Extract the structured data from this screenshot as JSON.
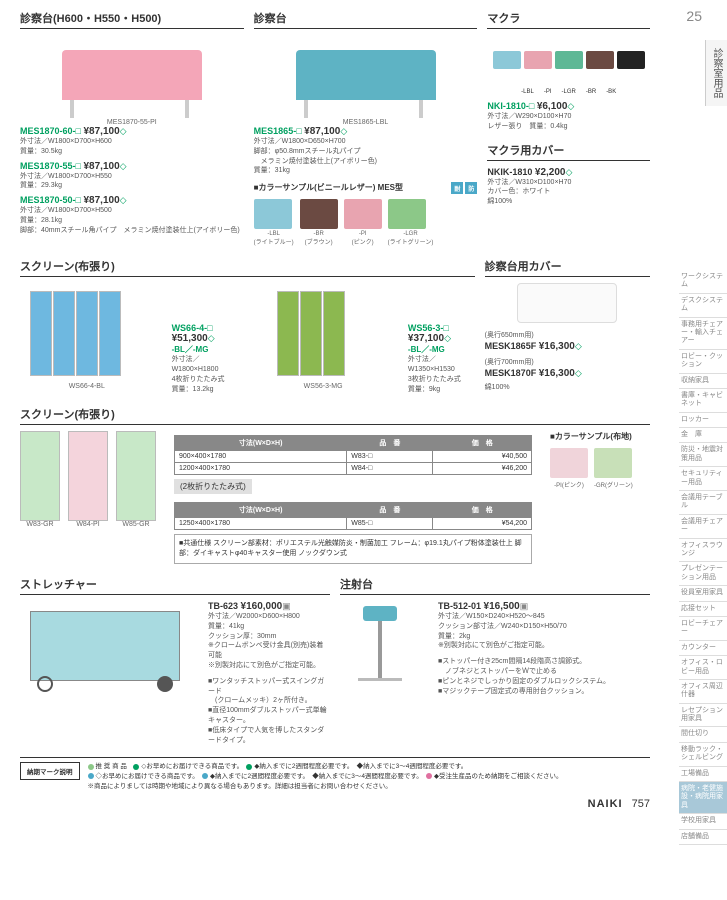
{
  "page": {
    "top_number": "25",
    "brand": "NAIKI",
    "bottom_number": "757"
  },
  "side_tab": "診察室用品",
  "side_index": [
    "ワークシステム",
    "デスクシステム",
    "事務用チェアー・輸入チェアー",
    "ロビー・クッション",
    "収納家具",
    "書庫・キャビネット",
    "ロッカー",
    "金　庫",
    "防災・地震対策用品",
    "セキュリティー用品",
    "会議用テーブル",
    "会議用チェアー",
    "オフィスラウンジ",
    "プレゼンテーション用品",
    "役員室用家具",
    "応接セット",
    "ロビーチェアー",
    "カウンター",
    "オフィス・ロビー用品",
    "オフィス周辺什器",
    "レセプション用家具",
    "間仕切り",
    "移動ラック・シェルビング",
    "工場備品",
    "病院・老健施設・病院用家具",
    "学校用家具",
    "店舗備品"
  ],
  "side_index_active": 24,
  "sections": {
    "exam_bed_1": {
      "title": "診察台(H600・H550・H500)",
      "caption": "MES1870-55-PI",
      "items": [
        {
          "code": "MES1870-60-□",
          "price": "¥87,100",
          "spec": "外寸法／W1800×D700×H600\n質量：30.5kg"
        },
        {
          "code": "MES1870-55-□",
          "price": "¥87,100",
          "spec": "外寸法／W1800×D700×H550\n質量：29.3kg"
        },
        {
          "code": "MES1870-50-□",
          "price": "¥87,100",
          "spec": "外寸法／W1800×D700×H500\n質量：28.1kg\n脚部：40mmスチール角パイプ　メラミン焼付塗装仕上(アイボリー色)"
        }
      ]
    },
    "exam_bed_2": {
      "title": "診察台",
      "caption": "MES1865-LBL",
      "item": {
        "code": "MES1865-□",
        "price": "¥87,100",
        "spec": "外寸法／W1800×D650×H700\n脚部：φ50.8mmスチール丸パイプ\n　メラミン焼付塗装仕上(アイボリー色)\n質量：31kg"
      },
      "swatch_title": "■カラーサンプル(ビニールレザー) MES型",
      "swatches": [
        {
          "c": "#8cc8d8",
          "code": "-LBL",
          "name": "(ライトブルー)"
        },
        {
          "c": "#6b4a42",
          "code": "-BR",
          "name": "(ブラウン)"
        },
        {
          "c": "#e8a4b0",
          "code": "-PI",
          "name": "(ピンク)"
        },
        {
          "c": "#8cc888",
          "code": "-LGR",
          "name": "(ライトグリーン)"
        }
      ]
    },
    "pillow": {
      "title": "マクラ",
      "colors": [
        "#8cc8d8",
        "#e8a4b0",
        "#5eb896",
        "#6b4a42",
        "#222"
      ],
      "color_labels": [
        "-LBL",
        "-PI",
        "-LGR",
        "-BR",
        "-BK"
      ],
      "item": {
        "code": "NKI-1810-□",
        "price": "¥6,100",
        "spec": "外寸法／W290×D100×H70\nレザー張り　質量：0.4kg"
      }
    },
    "pillow_cover": {
      "title": "マクラ用カバー",
      "item": {
        "code": "NKIK-1810",
        "price": "¥2,200",
        "spec": "外寸法／W310×D100×H70\nカバー色：ホワイト\n綿100%"
      }
    },
    "screen1": {
      "title": "スクリーン(布張り)",
      "left": {
        "caption": "WS66-4-BL",
        "code": "WS66-4-□",
        "variants": "-BL／-MG",
        "price": "¥51,300",
        "spec": "外寸法／W1800×H1800\n4枚折りたたみ式\n質量：13.2kg",
        "color": "#6eb8e0"
      },
      "right": {
        "caption": "WS56-3-MG",
        "code": "WS56-3-□",
        "variants": "-BL／-MG",
        "price": "¥37,100",
        "spec": "外寸法／W1350×H1530\n3枚折りたたみ式\n質量：9kg",
        "color": "#8cb850"
      }
    },
    "bed_cover": {
      "title": "診察台用カバー",
      "items": [
        {
          "label": "(奥行650mm用)",
          "code": "MESK1865F",
          "price": "¥16,300"
        },
        {
          "label": "(奥行700mm用)",
          "code": "MESK1870F",
          "price": "¥16,300"
        }
      ],
      "spec": "綿100%"
    },
    "screen2": {
      "title": "スクリーン(布張り)",
      "captions": [
        "W83-GR",
        "W84-PI",
        "W85-GR"
      ],
      "colors": [
        "#c8e8c8",
        "#f4d4dc",
        "#c8e8c8"
      ],
      "table1_title": "寸法(W×D×H)",
      "table_headers": [
        "寸法(W×D×H)",
        "品　番",
        "価　格"
      ],
      "table1": [
        {
          "dim": "900×400×1780",
          "code": "W83-□",
          "price": "¥40,500"
        },
        {
          "dim": "1200×400×1780",
          "code": "W84-□",
          "price": "¥46,200"
        }
      ],
      "table2_label": "(2枚折りたたみ式)",
      "table2": [
        {
          "dim": "1250×400×1780",
          "code": "W85-□",
          "price": "¥54,200"
        }
      ],
      "note": "■共通仕様\nスクリーン部素材：ポリエステル光触媒防炎・制菌加工\nフレーム：φ19.1丸パイプ粉体塗装仕上\n脚部：ダイキャストφ40キャスター使用\nノックダウン式",
      "swatch_title": "■カラーサンプル(布地)",
      "swatches": [
        {
          "c": "#f0d4da",
          "code": "-PI(ピンク)"
        },
        {
          "c": "#c8e0b8",
          "code": "-GR(グリーン)"
        }
      ]
    },
    "stretcher": {
      "title": "ストレッチャー",
      "code": "TB-623",
      "price": "¥160,000",
      "spec": "外寸法／W2000×D600×H800\n質量：41kg\nクッション厚：30mm\n※クロームボンベ受け金具(別売)装着可能\n※別製対応にて別色がご指定可能。",
      "features": "■ワンタッチストッパー式スイングガード\n　(クロームメッキ）2ヶ所付き。\n■直径100mmダブルストッパー式単輪キャスター。\n■低床タイプで人気を博したスタンダードタイプ。"
    },
    "injection": {
      "title": "注射台",
      "code": "TB-512-01",
      "price": "¥16,500",
      "spec": "外寸法／W150×D240×H520～845\nクッション部寸法／W240×D150×H50/70\n質量：2kg\n※別製対応にて別色がご指定可能。",
      "features": "■ストッパー付き25cm間隔14段階高さ調節式。\n　ノブネジとストッパーをＷで止める\n■ピンとネジでしっかり固定のダブルロックシステム。\n■マジックテープ固定式の専用肘台クッション。"
    }
  },
  "footer": {
    "label": "納期マーク説明",
    "lines": [
      [
        {
          "c": "#8cc888",
          "t": "推 奨 商 品"
        },
        {
          "c": "#00a060",
          "t": "◇お早めにお届けできる商品です。"
        },
        {
          "c": "#00a060",
          "t": "◆納入までに2週間程度必要です。"
        },
        {
          "t": "◆納入までに3～4週間程度必要です。"
        }
      ],
      [
        {
          "c": "#4aa8c8",
          "t": "◇お早めにお届けできる商品です。"
        },
        {
          "c": "#4aa8c8",
          "t": "◆納入までに2週間程度必要です。"
        },
        {
          "t": "◆納入までに3～4週間程度必要です。"
        },
        {
          "c": "#e070a0",
          "t": "◆受注生産品のため納期をご相談ください。"
        }
      ],
      [
        {
          "t": "※商品によりましては時期や地域により異なる場合もあります。詳細は担当者にお問い合わせください。"
        }
      ]
    ]
  }
}
